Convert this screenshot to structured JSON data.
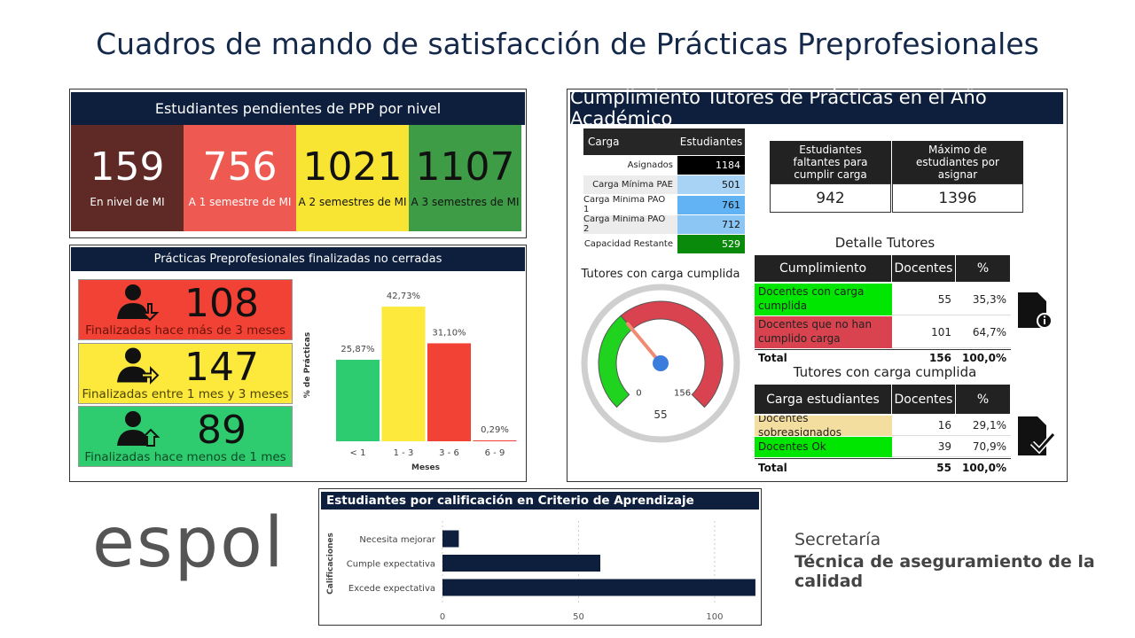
{
  "title": "Cuadros de mando de satisfacción de Prácticas Preprofesionales",
  "pendientes": {
    "title": "Estudiantes pendientes de PPP por nivel",
    "cards": [
      {
        "value": 159,
        "label": "En nivel de MI",
        "color": "#5f2a26",
        "text_color": "#ffffff"
      },
      {
        "value": 756,
        "label": "A 1 semestre de MI",
        "color": "#ee5a52",
        "text_color": "#ffffff"
      },
      {
        "value": 1021,
        "label": "A 2 semestres de MI",
        "color": "#f8e533",
        "text_color": "#111111"
      },
      {
        "value": 1107,
        "label": "A 3 semestres de MI",
        "color": "#3f9c46",
        "text_color": "#111111"
      }
    ]
  },
  "finalizadas": {
    "title": "Prácticas Preprofesionales finalizadas no cerradas",
    "cards": [
      {
        "value": 108,
        "label": "Finalizadas hace más de 3 meses",
        "color": "#f24236",
        "text_color": "#6b1208"
      },
      {
        "value": 147,
        "label": "Finalizadas entre 1 mes y 3 meses",
        "color": "#fde93b",
        "text_color": "#4d4300"
      },
      {
        "value": 89,
        "label": "Finalizadas hace menos de 1 mes",
        "color": "#2ecc6f",
        "text_color": "#0d4a25"
      }
    ]
  },
  "tutores": {
    "title": "Cumplimiento Tutores de Prácticas en el Año Académico",
    "carga": {
      "headers": [
        "Carga",
        "Estudiantes"
      ],
      "rows": [
        [
          "Asignados",
          1184
        ],
        [
          "Carga Mínima PAE",
          501
        ],
        [
          "Carga Mínima PAO 1",
          761
        ],
        [
          "Carga Mínima PAO 2",
          712
        ],
        [
          "Capacidad Restante",
          529
        ]
      ],
      "value_colors": [
        "#000000",
        "#a8d3f5",
        "#62b3f3",
        "#8cc6f5",
        "#0a8a0a"
      ]
    },
    "faltantes": {
      "headers": [
        "Estudiantes faltantes para cumplir carga",
        "Máximo de estudiantes por asignar"
      ],
      "values": [
        942,
        1396
      ]
    },
    "detalle": {
      "title": "Detalle Tutores",
      "headers": [
        "Cumplimiento",
        "Docentes",
        "%"
      ],
      "rows": [
        [
          "Docentes con carga cumplida",
          55,
          "35,3%"
        ],
        [
          "Docentes que no han cumplido carga",
          101,
          "64,7%"
        ]
      ],
      "row_colors": [
        "#00e600",
        "#d9434f"
      ],
      "total": [
        "Total",
        156,
        "100,0%"
      ]
    },
    "cumplida": {
      "title": "Tutores con carga cumplida",
      "headers": [
        "Carga estudiantes",
        "Docentes",
        "%"
      ],
      "rows": [
        [
          "Docentes sobreasignados",
          16,
          "29,1%"
        ],
        [
          "Docentes Ok",
          39,
          "70,9%"
        ]
      ],
      "row_colors": [
        "#f3dea0",
        "#00e600"
      ],
      "total": [
        "Total",
        55,
        "100,0%"
      ]
    }
  },
  "chart_data": [
    {
      "type": "bar",
      "categories": [
        "< 1",
        "1 - 3",
        "3 - 6",
        "6 - 9"
      ],
      "values": [
        25.87,
        42.73,
        31.1,
        0.29
      ],
      "value_labels": [
        "25,87%",
        "42,73%",
        "31,10%",
        "0,29%"
      ],
      "colors": [
        "#2ecc71",
        "#fde93b",
        "#f24236",
        "#f24236"
      ],
      "x_label": "Meses",
      "y_label": "% de Prácticas",
      "ylim": [
        0,
        45
      ]
    },
    {
      "type": "gauge",
      "title": "Tutores con carga cumplida",
      "value": 55,
      "ylim": [
        0,
        156
      ],
      "yticks": [
        0,
        156
      ],
      "color": "#1fd31f",
      "rest_color": "#d9434f",
      "needle_color": "#f08a72"
    },
    {
      "type": "hbar",
      "title": "Estudiantes por calificación en Criterio de Aprendizaje",
      "categories": [
        "Necesita mejorar",
        "Cumple expectativa",
        "Excede expectativa"
      ],
      "values": [
        6,
        58,
        115
      ],
      "color": "#0e1f3d",
      "y_label": "Calificaciones",
      "xlim": [
        0,
        116
      ],
      "xticks": [
        0,
        50,
        100
      ],
      "grid": true
    }
  ],
  "footer": {
    "logo": "espol",
    "line1": "Secretaría",
    "line2": "Técnica de aseguramiento de la calidad"
  }
}
